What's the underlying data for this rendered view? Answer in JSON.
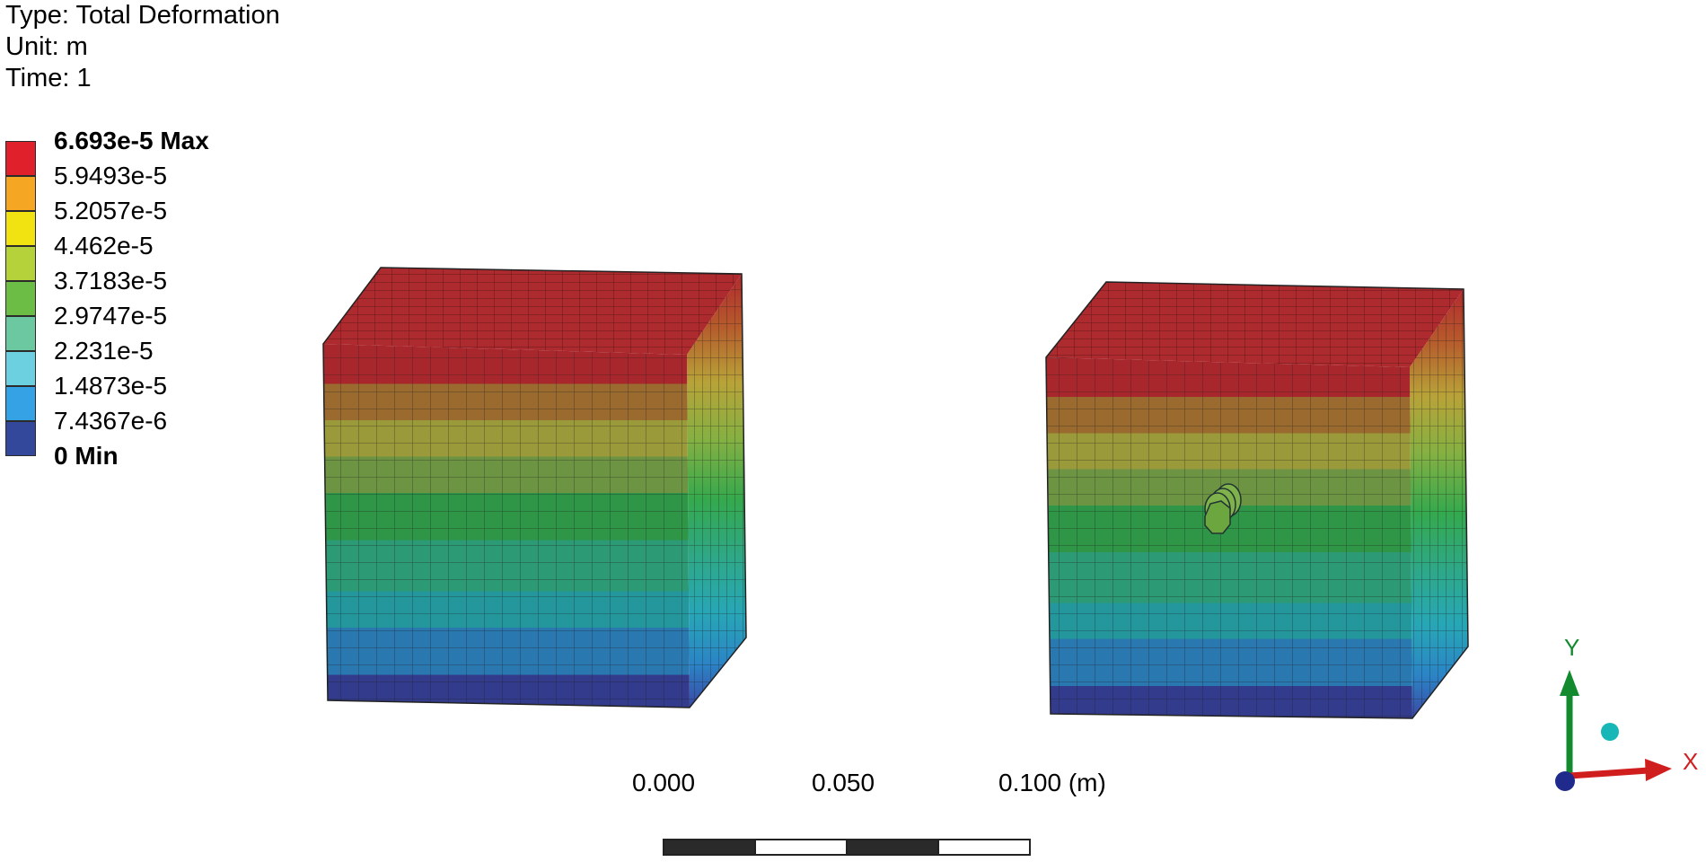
{
  "info": {
    "type": "Type: Total Deformation",
    "unit": "Unit: m",
    "time": "Time: 1"
  },
  "legend": {
    "labels": [
      "6.693e-5 Max",
      "5.9493e-5",
      "5.2057e-5",
      "4.462e-5",
      "3.7183e-5",
      "2.9747e-5",
      "2.231e-5",
      "1.4873e-5",
      "7.4367e-6",
      "0 Min"
    ],
    "colors": [
      "#e0202a",
      "#f5a623",
      "#f1e312",
      "#b6d23a",
      "#6cbd45",
      "#6cc8a0",
      "#6dd0e0",
      "#35a2e6",
      "#33479b"
    ]
  },
  "triad": {
    "y": "Y",
    "x": "X"
  },
  "scale": {
    "labels": [
      "0.000",
      "0.050",
      "0.100 (m)"
    ]
  }
}
